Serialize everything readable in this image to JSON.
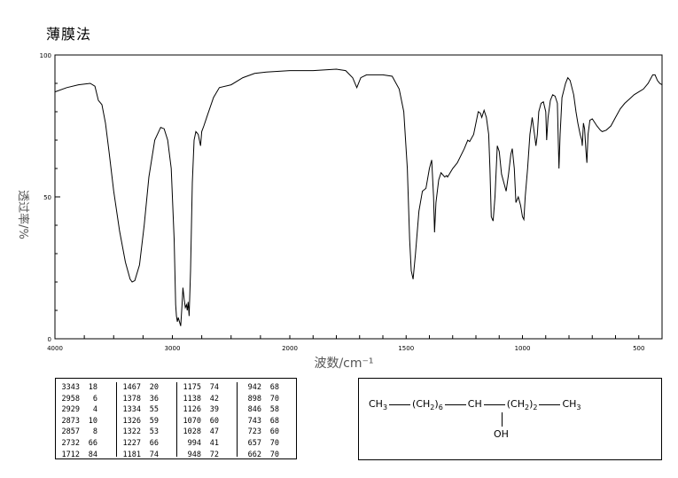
{
  "header": {
    "method": "薄膜法"
  },
  "chart_data": {
    "type": "line",
    "xlabel": "波数/cm⁻¹",
    "ylabel": "透过率/%",
    "xlim": [
      4000,
      400
    ],
    "ylim": [
      0,
      100
    ],
    "x_ticks": [
      4000,
      3000,
      2000,
      1500,
      1000,
      500
    ],
    "y_ticks": [
      0,
      50,
      100
    ],
    "x_tick_labels": [
      "4000",
      "3000",
      "2000",
      "1500",
      "1000",
      "500"
    ],
    "y_tick_labels": [
      "0",
      "50",
      "100"
    ],
    "grid": false,
    "series": [
      {
        "points": [
          [
            4000,
            87
          ],
          [
            3900,
            88.5
          ],
          [
            3800,
            89.5
          ],
          [
            3700,
            90
          ],
          [
            3660,
            89
          ],
          [
            3630,
            84
          ],
          [
            3600,
            82.5
          ],
          [
            3570,
            76
          ],
          [
            3540,
            66
          ],
          [
            3500,
            52
          ],
          [
            3450,
            38
          ],
          [
            3400,
            27
          ],
          [
            3360,
            21
          ],
          [
            3343,
            20
          ],
          [
            3320,
            20.5
          ],
          [
            3280,
            26
          ],
          [
            3240,
            40
          ],
          [
            3200,
            57
          ],
          [
            3150,
            70
          ],
          [
            3100,
            74.5
          ],
          [
            3070,
            74
          ],
          [
            3040,
            70
          ],
          [
            3010,
            60
          ],
          [
            2985,
            35
          ],
          [
            2972,
            12
          ],
          [
            2965,
            8
          ],
          [
            2958,
            6
          ],
          [
            2950,
            7.5
          ],
          [
            2940,
            6
          ],
          [
            2929,
            4.5
          ],
          [
            2918,
            12
          ],
          [
            2910,
            18
          ],
          [
            2900,
            14
          ],
          [
            2890,
            11
          ],
          [
            2880,
            12
          ],
          [
            2873,
            10
          ],
          [
            2866,
            13
          ],
          [
            2857,
            8
          ],
          [
            2845,
            24
          ],
          [
            2830,
            55
          ],
          [
            2815,
            70
          ],
          [
            2800,
            73
          ],
          [
            2780,
            72
          ],
          [
            2760,
            68
          ],
          [
            2750,
            73
          ],
          [
            2732,
            75
          ],
          [
            2700,
            79
          ],
          [
            2650,
            85
          ],
          [
            2600,
            88.5
          ],
          [
            2500,
            89.5
          ],
          [
            2400,
            92
          ],
          [
            2300,
            93.5
          ],
          [
            2200,
            94
          ],
          [
            2000,
            94.5
          ],
          [
            1900,
            94.5
          ],
          [
            1800,
            95
          ],
          [
            1760,
            94.5
          ],
          [
            1730,
            92
          ],
          [
            1712,
            88.5
          ],
          [
            1695,
            92
          ],
          [
            1670,
            93
          ],
          [
            1600,
            93
          ],
          [
            1560,
            92.5
          ],
          [
            1530,
            88
          ],
          [
            1510,
            80
          ],
          [
            1495,
            60
          ],
          [
            1485,
            35
          ],
          [
            1478,
            24
          ],
          [
            1470,
            21
          ],
          [
            1460,
            30
          ],
          [
            1445,
            45
          ],
          [
            1430,
            52
          ],
          [
            1415,
            53
          ],
          [
            1400,
            60
          ],
          [
            1390,
            63
          ],
          [
            1382,
            50
          ],
          [
            1378,
            37.5
          ],
          [
            1372,
            48
          ],
          [
            1360,
            56
          ],
          [
            1350,
            58.5
          ],
          [
            1334,
            57
          ],
          [
            1326,
            57.5
          ],
          [
            1322,
            57
          ],
          [
            1300,
            60
          ],
          [
            1280,
            62
          ],
          [
            1250,
            67
          ],
          [
            1235,
            70
          ],
          [
            1227,
            69.5
          ],
          [
            1210,
            72
          ],
          [
            1190,
            80
          ],
          [
            1181,
            79.5
          ],
          [
            1175,
            78
          ],
          [
            1165,
            80.5
          ],
          [
            1155,
            78
          ],
          [
            1145,
            72
          ],
          [
            1140,
            60
          ],
          [
            1134,
            43
          ],
          [
            1126,
            41.5
          ],
          [
            1118,
            50
          ],
          [
            1108,
            68
          ],
          [
            1100,
            66
          ],
          [
            1090,
            58
          ],
          [
            1080,
            55
          ],
          [
            1070,
            52
          ],
          [
            1060,
            58
          ],
          [
            1050,
            65
          ],
          [
            1044,
            67
          ],
          [
            1035,
            60
          ],
          [
            1028,
            48
          ],
          [
            1018,
            50
          ],
          [
            1008,
            47
          ],
          [
            1000,
            43
          ],
          [
            994,
            42
          ],
          [
            988,
            50
          ],
          [
            978,
            60
          ],
          [
            968,
            72
          ],
          [
            958,
            78
          ],
          [
            948,
            72
          ],
          [
            942,
            68
          ],
          [
            936,
            72
          ],
          [
            930,
            80
          ],
          [
            920,
            83
          ],
          [
            910,
            83.5
          ],
          [
            900,
            80
          ],
          [
            896,
            70
          ],
          [
            890,
            78
          ],
          [
            880,
            84
          ],
          [
            870,
            86
          ],
          [
            860,
            85.5
          ],
          [
            850,
            83
          ],
          [
            846,
            70
          ],
          [
            843,
            60
          ],
          [
            838,
            72
          ],
          [
            830,
            85
          ],
          [
            815,
            90
          ],
          [
            805,
            92
          ],
          [
            795,
            91
          ],
          [
            780,
            86
          ],
          [
            770,
            80
          ],
          [
            762,
            76
          ],
          [
            752,
            72
          ],
          [
            745,
            70
          ],
          [
            743,
            68
          ],
          [
            738,
            76
          ],
          [
            733,
            74
          ],
          [
            727,
            66
          ],
          [
            723,
            62
          ],
          [
            718,
            72
          ],
          [
            710,
            77
          ],
          [
            700,
            77.5
          ],
          [
            680,
            75
          ],
          [
            665,
            73.5
          ],
          [
            657,
            73
          ],
          [
            640,
            73.5
          ],
          [
            620,
            75
          ],
          [
            600,
            78
          ],
          [
            580,
            81
          ],
          [
            560,
            83
          ],
          [
            540,
            84.5
          ],
          [
            520,
            86
          ],
          [
            500,
            87
          ],
          [
            480,
            88
          ],
          [
            460,
            90
          ],
          [
            440,
            93
          ],
          [
            430,
            93
          ],
          [
            420,
            91
          ],
          [
            410,
            90
          ],
          [
            400,
            89.5
          ]
        ]
      }
    ]
  },
  "peak_table": {
    "columns": [
      [
        [
          "3343",
          "18"
        ],
        [
          "2958",
          "6"
        ],
        [
          "2929",
          "4"
        ],
        [
          "2873",
          "10"
        ],
        [
          "2857",
          "8"
        ],
        [
          "2732",
          "66"
        ],
        [
          "1712",
          "84"
        ]
      ],
      [
        [
          "1467",
          "20"
        ],
        [
          "1378",
          "36"
        ],
        [
          "1334",
          "55"
        ],
        [
          "1326",
          "59"
        ],
        [
          "1322",
          "53"
        ],
        [
          "1227",
          "66"
        ],
        [
          "1181",
          "74"
        ]
      ],
      [
        [
          "1175",
          "74"
        ],
        [
          "1138",
          "42"
        ],
        [
          "1126",
          "39"
        ],
        [
          "1070",
          "60"
        ],
        [
          "1028",
          "47"
        ],
        [
          "994",
          "41"
        ],
        [
          "948",
          "72"
        ]
      ],
      [
        [
          "942",
          "68"
        ],
        [
          "898",
          "70"
        ],
        [
          "846",
          "58"
        ],
        [
          "743",
          "68"
        ],
        [
          "723",
          "60"
        ],
        [
          "657",
          "70"
        ],
        [
          "662",
          "70"
        ]
      ]
    ]
  },
  "structure": {
    "ch3_left": "CH",
    "ch3_left_sub": "3",
    "group1": "(CH",
    "group1_sub": "2",
    "group1_close": ")",
    "group1_count": "6",
    "center": "CH",
    "group2": "(CH",
    "group2_sub": "2",
    "group2_close": ")",
    "group2_count": "2",
    "ch3_right": "CH",
    "ch3_right_sub": "3",
    "oh": "OH"
  }
}
